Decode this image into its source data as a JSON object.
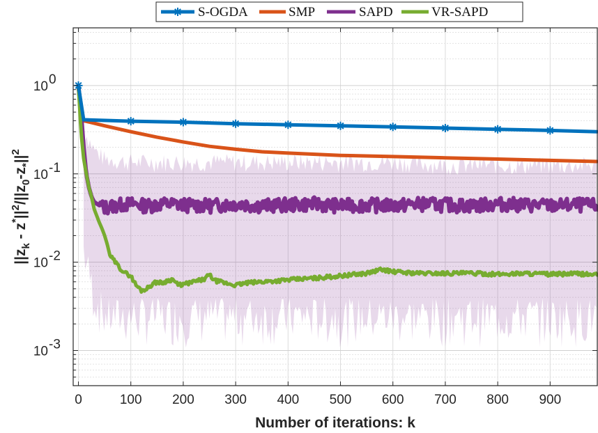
{
  "chart_data": {
    "type": "line",
    "xlabel": "Number of iterations: k",
    "ylabel": {
      "parts": [
        "||z",
        "k",
        " - z",
        "*",
        "||",
        "2",
        "/||z",
        "0",
        "-z",
        "*",
        "||",
        "2"
      ]
    },
    "xlim": [
      -10,
      990
    ],
    "ylim": [
      0.0004,
      4.5
    ],
    "yscale": "log",
    "grid": true,
    "legend_position": "top",
    "x_ticks": [
      0,
      100,
      200,
      300,
      400,
      500,
      600,
      700,
      800,
      900
    ],
    "x_tick_labels": [
      "0",
      "100",
      "200",
      "300",
      "400",
      "500",
      "600",
      "700",
      "800",
      "900"
    ],
    "y_ticks": [
      0.001,
      0.01,
      0.1,
      1
    ],
    "y_tick_labels": [
      {
        "base": "10",
        "exp": "-3"
      },
      {
        "base": "10",
        "exp": "-2"
      },
      {
        "base": "10",
        "exp": "-1"
      },
      {
        "base": "10",
        "exp": "0"
      }
    ],
    "series": [
      {
        "name": "S-OGDA",
        "color": "#0072BD",
        "marker": "star",
        "x": [
          0,
          10,
          100,
          200,
          300,
          400,
          500,
          600,
          700,
          800,
          900,
          990
        ],
        "y": [
          1.0,
          0.41,
          0.395,
          0.385,
          0.37,
          0.36,
          0.35,
          0.34,
          0.33,
          0.32,
          0.31,
          0.3
        ],
        "marker_x": [
          0,
          100,
          200,
          300,
          400,
          500,
          600,
          700,
          800,
          900
        ]
      },
      {
        "name": "SMP",
        "color": "#D95319",
        "x": [
          10,
          50,
          100,
          150,
          200,
          250,
          300,
          350,
          400,
          500,
          600,
          700,
          800,
          900,
          990
        ],
        "y": [
          0.4,
          0.35,
          0.3,
          0.26,
          0.23,
          0.205,
          0.19,
          0.178,
          0.172,
          0.162,
          0.157,
          0.152,
          0.147,
          0.142,
          0.138
        ]
      },
      {
        "name": "SAPD",
        "color": "#7E2F8E",
        "x": [
          0,
          5,
          10,
          15,
          20,
          25,
          30,
          40,
          50,
          60,
          80,
          100,
          130,
          160,
          200,
          250,
          300,
          350,
          400,
          450,
          500,
          550,
          600,
          650,
          700,
          750,
          800,
          850,
          900,
          950,
          990
        ],
        "y": [
          1.0,
          0.5,
          0.2,
          0.1,
          0.07,
          0.055,
          0.048,
          0.044,
          0.042,
          0.043,
          0.045,
          0.046,
          0.044,
          0.046,
          0.045,
          0.044,
          0.046,
          0.044,
          0.045,
          0.046,
          0.044,
          0.045,
          0.044,
          0.046,
          0.045,
          0.044,
          0.046,
          0.045,
          0.044,
          0.045,
          0.044
        ]
      },
      {
        "name": "VR-SAPD",
        "color": "#77AC30",
        "x": [
          0,
          5,
          10,
          15,
          20,
          25,
          30,
          40,
          45,
          50,
          55,
          60,
          70,
          80,
          90,
          100,
          110,
          120,
          130,
          140,
          150,
          160,
          170,
          180,
          190,
          200,
          220,
          240,
          250,
          260,
          280,
          300,
          320,
          350,
          400,
          450,
          500,
          550,
          580,
          600,
          650,
          700,
          750,
          800,
          850,
          900,
          950,
          990
        ],
        "y": [
          1.0,
          0.3,
          0.15,
          0.1,
          0.07,
          0.055,
          0.04,
          0.028,
          0.024,
          0.02,
          0.016,
          0.012,
          0.01,
          0.0085,
          0.0075,
          0.007,
          0.0055,
          0.0048,
          0.005,
          0.0056,
          0.006,
          0.0058,
          0.0062,
          0.0064,
          0.0055,
          0.0056,
          0.006,
          0.0064,
          0.0072,
          0.0062,
          0.0058,
          0.0055,
          0.0058,
          0.006,
          0.0063,
          0.0066,
          0.007,
          0.0075,
          0.0083,
          0.0078,
          0.0075,
          0.0075,
          0.0075,
          0.0073,
          0.0075,
          0.0073,
          0.0074,
          0.0072
        ]
      }
    ],
    "shaded_band": {
      "series": "SAPD",
      "color": "#7E2F8E",
      "opacity": 0.18,
      "x": [
        10,
        30,
        50,
        100,
        200,
        300,
        400,
        500,
        600,
        700,
        800,
        900,
        990
      ],
      "upper": [
        0.3,
        0.18,
        0.14,
        0.13,
        0.13,
        0.13,
        0.13,
        0.13,
        0.13,
        0.12,
        0.12,
        0.12,
        0.12
      ],
      "lower": [
        0.01,
        0.003,
        0.0018,
        0.0018,
        0.0018,
        0.0018,
        0.0018,
        0.0018,
        0.0018,
        0.0018,
        0.0018,
        0.0018,
        0.0018
      ]
    }
  }
}
